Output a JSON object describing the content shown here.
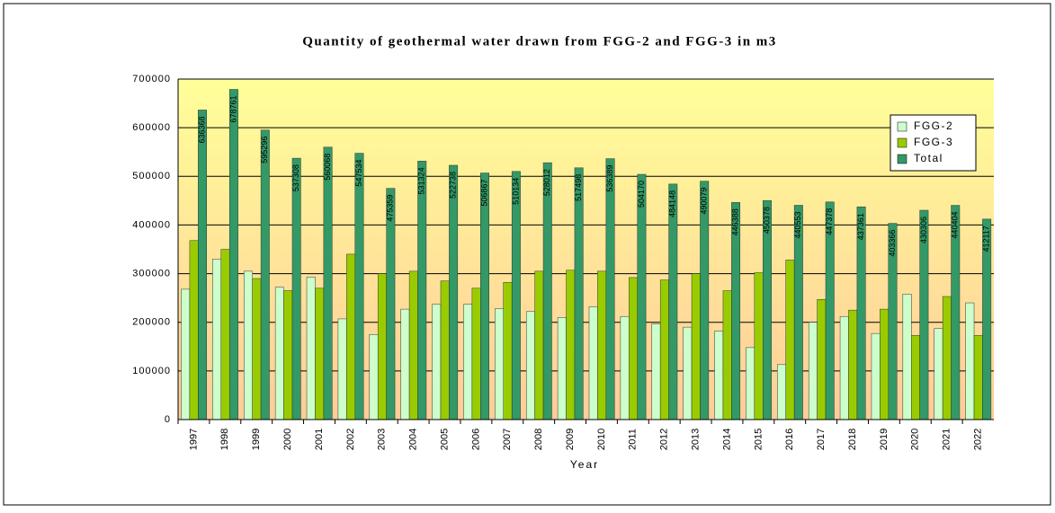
{
  "chart_data": {
    "type": "bar",
    "title": "Quantity of geothermal water drawn from FGG-2 and FGG-3 in m3",
    "x_label": "Year",
    "categories": [
      "1997",
      "1998",
      "1999",
      "2000",
      "2001",
      "2002",
      "2003",
      "2004",
      "2005",
      "2006",
      "2007",
      "2008",
      "2009",
      "2010",
      "2011",
      "2012",
      "2013",
      "2014",
      "2015",
      "2016",
      "2017",
      "2018",
      "2019",
      "2020",
      "2021",
      "2022"
    ],
    "series": [
      {
        "name": "FGG-2",
        "color": "#ccffcc",
        "values": [
          268000,
          330000,
          305000,
          272000,
          293000,
          207000,
          175000,
          227000,
          237000,
          237000,
          228000,
          222000,
          210000,
          232000,
          212000,
          197000,
          190000,
          182000,
          148000,
          113000,
          200000,
          212000,
          177000,
          258000,
          187000,
          240000
        ]
      },
      {
        "name": "FGG-3",
        "color": "#99cc00",
        "values": [
          368000,
          350000,
          290000,
          265000,
          270000,
          340000,
          300000,
          305000,
          285000,
          270000,
          282000,
          305000,
          307000,
          305000,
          292000,
          287000,
          300000,
          265000,
          302000,
          328000,
          247000,
          225000,
          227000,
          173000,
          253000,
          173000
        ]
      },
      {
        "name": "Total",
        "color": "#339966",
        "values": [
          636368,
          678761,
          595296,
          537308,
          560068,
          547534,
          475359,
          531324,
          522738,
          506867,
          510134,
          528012,
          517498,
          536389,
          504170,
          484148,
          490079,
          446388,
          450378,
          440553,
          447378,
          437361,
          403366,
          430306,
          440404,
          412117
        ],
        "show_value_labels": true
      }
    ],
    "ylim": [
      0,
      700000
    ],
    "yticks": [
      0,
      100000,
      200000,
      300000,
      400000,
      500000,
      600000,
      700000
    ],
    "grid": true,
    "legend": "top-right"
  }
}
